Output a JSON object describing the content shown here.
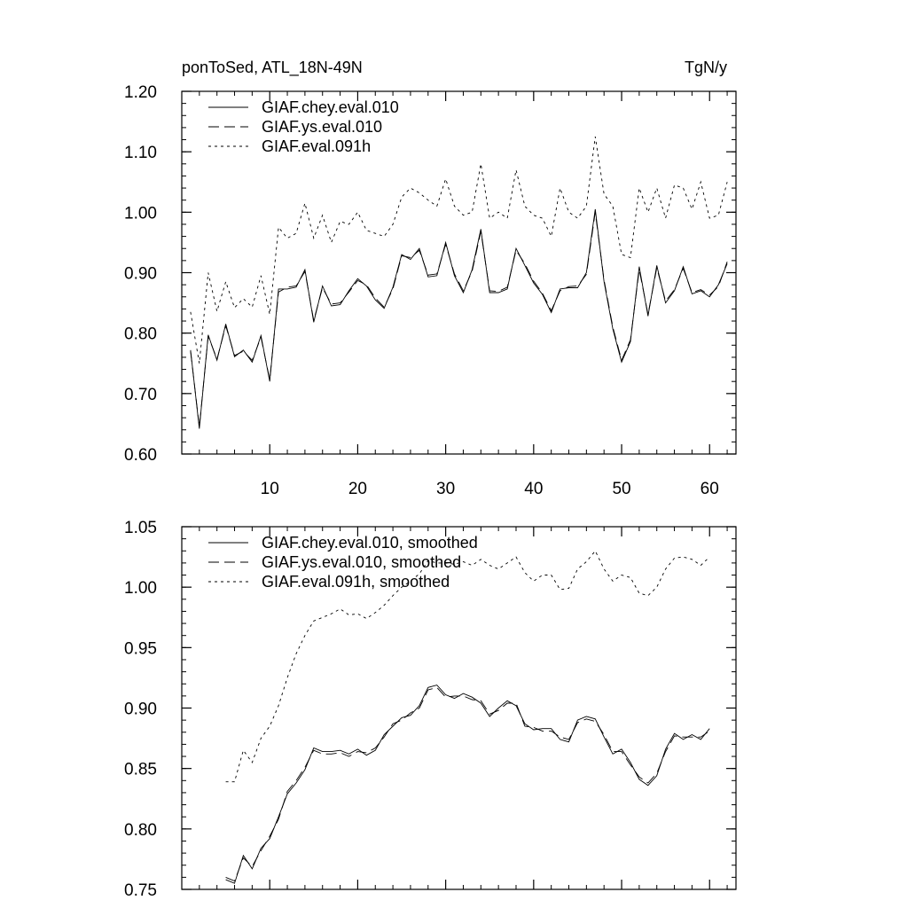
{
  "header": {
    "left": "ponToSed, ATL_18N-49N",
    "right": "TgN/y"
  },
  "colors": {
    "line": "#000000",
    "background": "#ffffff"
  },
  "chart_data": [
    {
      "type": "line",
      "title": "ponToSed, ATL_18N-49N",
      "units": "TgN/y",
      "xlim": [
        0,
        63
      ],
      "ylim": [
        0.6,
        1.2
      ],
      "xticks": [
        {
          "value": 10,
          "label": "10"
        },
        {
          "value": 20,
          "label": "20"
        },
        {
          "value": 30,
          "label": "30"
        },
        {
          "value": 40,
          "label": "40"
        },
        {
          "value": 50,
          "label": "50"
        },
        {
          "value": 60,
          "label": "60"
        }
      ],
      "yticks": [
        {
          "value": 0.6,
          "label": "0.60"
        },
        {
          "value": 0.7,
          "label": "0.70"
        },
        {
          "value": 0.8,
          "label": "0.80"
        },
        {
          "value": 0.9,
          "label": "0.90"
        },
        {
          "value": 1.0,
          "label": "1.00"
        },
        {
          "value": 1.1,
          "label": "1.10"
        },
        {
          "value": 1.2,
          "label": "1.20"
        }
      ],
      "legend_position": "top-left",
      "series": [
        {
          "name": "GIAF.chey.eval.010",
          "dash": "solid",
          "x_start": 1,
          "values": [
            0.772,
            0.642,
            0.797,
            0.755,
            0.815,
            0.761,
            0.772,
            0.752,
            0.796,
            0.72,
            0.873,
            0.873,
            0.876,
            0.905,
            0.818,
            0.878,
            0.845,
            0.847,
            0.87,
            0.89,
            0.878,
            0.855,
            0.841,
            0.876,
            0.93,
            0.922,
            0.94,
            0.893,
            0.895,
            0.95,
            0.895,
            0.867,
            0.905,
            0.972,
            0.867,
            0.867,
            0.873,
            0.94,
            0.912,
            0.883,
            0.864,
            0.834,
            0.873,
            0.875,
            0.875,
            0.9,
            1.005,
            0.885,
            0.807,
            0.752,
            0.786,
            0.91,
            0.828,
            0.912,
            0.85,
            0.87,
            0.91,
            0.865,
            0.87,
            0.86,
            0.88,
            0.915
          ]
        },
        {
          "name": "GIAF.ys.eval.010",
          "dash": "long-dash",
          "x_start": 1,
          "values": [
            0.77,
            0.645,
            0.795,
            0.757,
            0.812,
            0.763,
            0.77,
            0.755,
            0.793,
            0.723,
            0.868,
            0.876,
            0.878,
            0.902,
            0.821,
            0.875,
            0.848,
            0.85,
            0.868,
            0.887,
            0.88,
            0.858,
            0.843,
            0.873,
            0.928,
            0.925,
            0.937,
            0.896,
            0.898,
            0.947,
            0.898,
            0.87,
            0.902,
            0.968,
            0.87,
            0.869,
            0.876,
            0.937,
            0.915,
            0.886,
            0.866,
            0.837,
            0.87,
            0.877,
            0.878,
            0.897,
            1.0,
            0.888,
            0.81,
            0.755,
            0.789,
            0.905,
            0.831,
            0.908,
            0.853,
            0.872,
            0.907,
            0.867,
            0.872,
            0.863,
            0.877,
            0.918
          ]
        },
        {
          "name": "GIAF.eval.091h",
          "dash": "short-dash",
          "x_start": 1,
          "values": [
            0.835,
            0.75,
            0.9,
            0.836,
            0.885,
            0.842,
            0.857,
            0.843,
            0.895,
            0.831,
            0.975,
            0.957,
            0.965,
            1.015,
            0.957,
            0.995,
            0.95,
            0.985,
            0.98,
            1.0,
            0.97,
            0.965,
            0.96,
            0.98,
            1.025,
            1.04,
            1.032,
            1.02,
            1.01,
            1.055,
            1.01,
            0.995,
            1.0,
            1.08,
            0.99,
            1.0,
            0.99,
            1.07,
            1.01,
            0.995,
            0.99,
            0.96,
            1.04,
            1.0,
            0.99,
            1.01,
            1.125,
            1.03,
            1.01,
            0.93,
            0.925,
            1.04,
            1.0,
            1.04,
            0.99,
            1.045,
            1.04,
            1.005,
            1.05,
            0.99,
            0.995,
            1.05
          ]
        }
      ]
    },
    {
      "type": "line",
      "title": "",
      "xlim": [
        0,
        63
      ],
      "ylim": [
        0.75,
        1.05
      ],
      "xticks": [
        {
          "value": 10,
          "label": ""
        },
        {
          "value": 20,
          "label": ""
        },
        {
          "value": 30,
          "label": ""
        },
        {
          "value": 40,
          "label": ""
        },
        {
          "value": 50,
          "label": ""
        },
        {
          "value": 60,
          "label": ""
        }
      ],
      "yticks": [
        {
          "value": 0.75,
          "label": "0.75"
        },
        {
          "value": 0.8,
          "label": "0.80"
        },
        {
          "value": 0.85,
          "label": "0.85"
        },
        {
          "value": 0.9,
          "label": "0.90"
        },
        {
          "value": 0.95,
          "label": "0.95"
        },
        {
          "value": 1.0,
          "label": "1.00"
        },
        {
          "value": 1.05,
          "label": "1.05"
        }
      ],
      "legend_position": "top-left",
      "series": [
        {
          "name": "GIAF.chey.eval.010, smoothed",
          "dash": "solid",
          "x_start": 5,
          "values": [
            0.758,
            0.755,
            0.778,
            0.767,
            0.784,
            0.792,
            0.81,
            0.829,
            0.838,
            0.849,
            0.867,
            0.864,
            0.864,
            0.865,
            0.862,
            0.866,
            0.861,
            0.865,
            0.878,
            0.885,
            0.892,
            0.894,
            0.902,
            0.917,
            0.919,
            0.911,
            0.908,
            0.912,
            0.909,
            0.904,
            0.893,
            0.9,
            0.906,
            0.902,
            0.887,
            0.882,
            0.883,
            0.883,
            0.874,
            0.872,
            0.89,
            0.893,
            0.891,
            0.876,
            0.862,
            0.866,
            0.855,
            0.841,
            0.836,
            0.844,
            0.866,
            0.879,
            0.874,
            0.878,
            0.874,
            0.883
          ]
        },
        {
          "name": "GIAF.ys.eval.010, smoothed",
          "dash": "long-dash",
          "x_start": 5,
          "values": [
            0.76,
            0.757,
            0.776,
            0.769,
            0.782,
            0.794,
            0.808,
            0.831,
            0.84,
            0.851,
            0.865,
            0.862,
            0.862,
            0.863,
            0.86,
            0.864,
            0.863,
            0.867,
            0.876,
            0.887,
            0.89,
            0.896,
            0.9,
            0.915,
            0.917,
            0.909,
            0.91,
            0.91,
            0.907,
            0.906,
            0.895,
            0.898,
            0.904,
            0.904,
            0.885,
            0.884,
            0.881,
            0.881,
            0.876,
            0.874,
            0.888,
            0.891,
            0.889,
            0.878,
            0.864,
            0.864,
            0.853,
            0.843,
            0.838,
            0.846,
            0.864,
            0.877,
            0.876,
            0.876,
            0.876,
            0.881
          ]
        },
        {
          "name": "GIAF.eval.091h, smoothed",
          "dash": "short-dash",
          "x_start": 5,
          "values": [
            0.839,
            0.839,
            0.865,
            0.855,
            0.875,
            0.885,
            0.902,
            0.925,
            0.945,
            0.96,
            0.972,
            0.975,
            0.978,
            0.982,
            0.977,
            0.978,
            0.974,
            0.979,
            0.985,
            0.993,
            1.0,
            1.005,
            1.011,
            1.022,
            1.02,
            1.02,
            1.019,
            1.021,
            1.018,
            1.023,
            1.018,
            1.015,
            1.02,
            1.025,
            1.012,
            1.005,
            1.01,
            1.01,
            0.998,
            0.999,
            1.015,
            1.021,
            1.03,
            1.015,
            1.005,
            1.01,
            1.008,
            0.995,
            0.993,
            1.0,
            1.015,
            1.024,
            1.025,
            1.023,
            1.018,
            1.025
          ]
        }
      ]
    }
  ]
}
